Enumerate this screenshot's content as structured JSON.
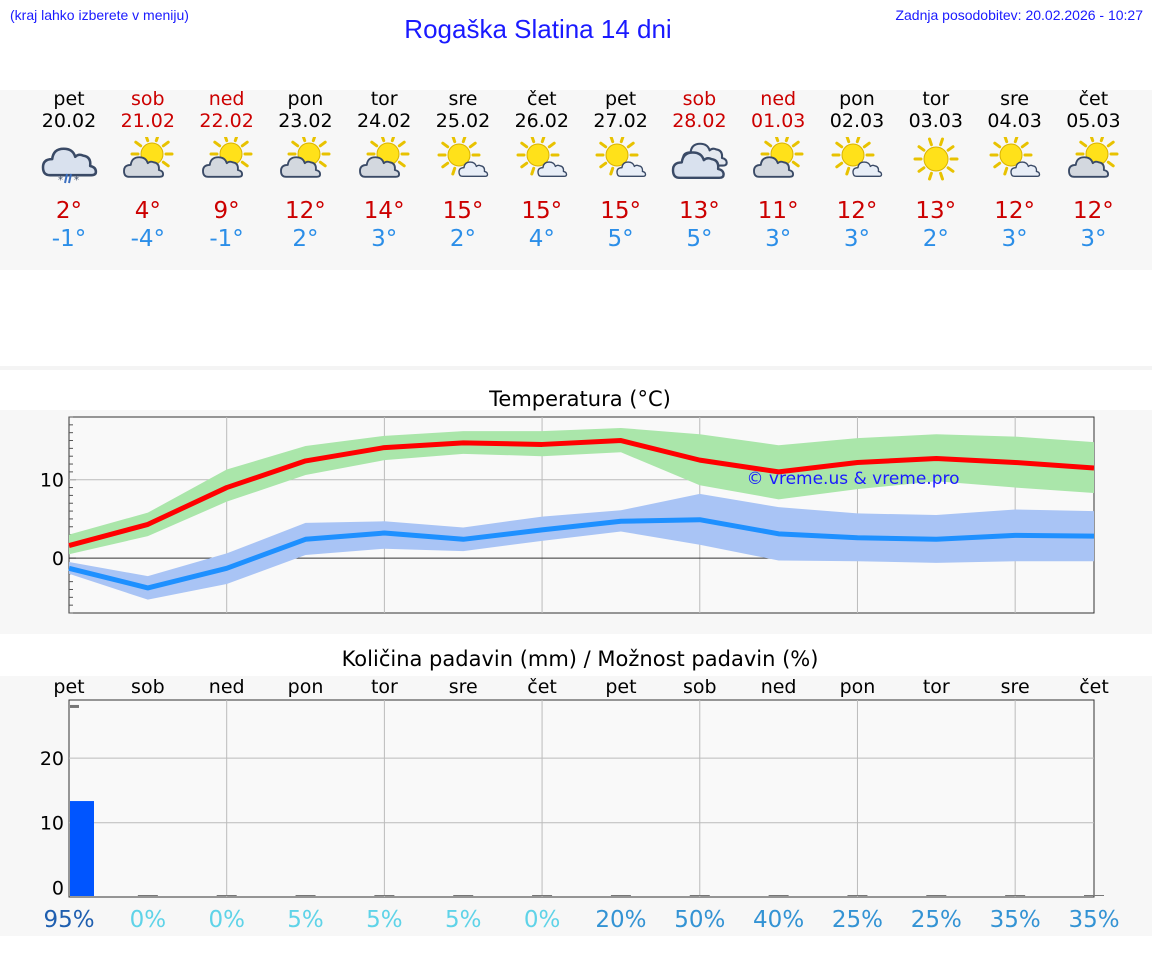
{
  "header": {
    "hint": "(kraj lahko izberete v meniju)",
    "title": "Rogaška Slatina 14 dni",
    "updated": "Zadnja posodobitev: 20.02.2026 - 10:27"
  },
  "days": [
    {
      "name": "pet",
      "date": "20.02",
      "weekend": false,
      "icon": "cloud-snow-rain-icon",
      "tmax": "2°",
      "tmin": "-1°"
    },
    {
      "name": "sob",
      "date": "21.02",
      "weekend": true,
      "icon": "sun-behind-cloud-icon",
      "tmax": "4°",
      "tmin": "-4°"
    },
    {
      "name": "ned",
      "date": "22.02",
      "weekend": true,
      "icon": "sun-behind-cloud-icon",
      "tmax": "9°",
      "tmin": "-1°"
    },
    {
      "name": "pon",
      "date": "23.02",
      "weekend": false,
      "icon": "sun-behind-cloud-icon",
      "tmax": "12°",
      "tmin": "2°"
    },
    {
      "name": "tor",
      "date": "24.02",
      "weekend": false,
      "icon": "sun-behind-cloud-icon",
      "tmax": "14°",
      "tmin": "3°"
    },
    {
      "name": "sre",
      "date": "25.02",
      "weekend": false,
      "icon": "sun-small-cloud-icon",
      "tmax": "15°",
      "tmin": "2°"
    },
    {
      "name": "čet",
      "date": "26.02",
      "weekend": false,
      "icon": "sun-small-cloud-icon",
      "tmax": "15°",
      "tmin": "4°"
    },
    {
      "name": "pet",
      "date": "27.02",
      "weekend": false,
      "icon": "sun-small-cloud-icon",
      "tmax": "15°",
      "tmin": "5°"
    },
    {
      "name": "sob",
      "date": "28.02",
      "weekend": true,
      "icon": "cloudy-icon",
      "tmax": "13°",
      "tmin": "5°"
    },
    {
      "name": "ned",
      "date": "01.03",
      "weekend": true,
      "icon": "sun-behind-cloud-icon",
      "tmax": "11°",
      "tmin": "3°"
    },
    {
      "name": "pon",
      "date": "02.03",
      "weekend": false,
      "icon": "sun-small-cloud-icon",
      "tmax": "12°",
      "tmin": "3°"
    },
    {
      "name": "tor",
      "date": "03.03",
      "weekend": false,
      "icon": "sun-icon",
      "tmax": "13°",
      "tmin": "2°"
    },
    {
      "name": "sre",
      "date": "04.03",
      "weekend": false,
      "icon": "sun-small-cloud-icon",
      "tmax": "12°",
      "tmin": "3°"
    },
    {
      "name": "čet",
      "date": "05.03",
      "weekend": false,
      "icon": "sun-behind-cloud-icon",
      "tmax": "12°",
      "tmin": "3°"
    }
  ],
  "colors": {
    "max_line": "#ff0000",
    "max_band": "#aae6aa",
    "min_line": "#1e90ff",
    "min_band": "#a9c4f5",
    "bar": "#0055ff",
    "grid": "#bbbbbb"
  },
  "chart_data": [
    {
      "type": "line",
      "title": "Temperatura (°C)",
      "watermark": "© vreme.us & vreme.pro",
      "x": [
        0,
        1,
        2,
        3,
        4,
        5,
        6,
        7,
        8,
        9,
        10,
        11,
        12,
        13
      ],
      "ylim": [
        -7,
        18
      ],
      "yticks": [
        0,
        10
      ],
      "series": [
        {
          "name": "max",
          "values": [
            1.6,
            4.3,
            9.0,
            12.4,
            14.1,
            14.7,
            14.5,
            15.0,
            12.5,
            11.0,
            12.2,
            12.7,
            12.2,
            11.5
          ],
          "band_low": [
            0.5,
            2.8,
            7.2,
            10.6,
            12.5,
            13.3,
            13.0,
            13.5,
            9.3,
            7.5,
            8.8,
            9.8,
            9.0,
            8.3
          ],
          "band_high": [
            3.0,
            5.8,
            11.3,
            14.3,
            15.6,
            16.2,
            16.2,
            16.6,
            15.8,
            14.4,
            15.3,
            15.8,
            15.5,
            14.8
          ]
        },
        {
          "name": "min",
          "values": [
            -1.3,
            -3.8,
            -1.3,
            2.4,
            3.2,
            2.4,
            3.6,
            4.7,
            4.9,
            3.1,
            2.6,
            2.4,
            2.9,
            2.8
          ],
          "band_low": [
            -2.0,
            -5.3,
            -3.3,
            0.4,
            1.2,
            0.9,
            2.2,
            3.4,
            1.7,
            -0.3,
            -0.4,
            -0.6,
            -0.4,
            -0.4
          ],
          "band_high": [
            -0.5,
            -2.3,
            0.6,
            4.5,
            4.7,
            3.9,
            5.3,
            6.1,
            8.2,
            6.5,
            5.7,
            5.5,
            6.2,
            6.0
          ]
        }
      ]
    },
    {
      "type": "bar",
      "title": "Količina padavin (mm) / Možnost padavin (%)",
      "categories": [
        "pet",
        "sob",
        "ned",
        "pon",
        "tor",
        "sre",
        "čet",
        "pet",
        "sob",
        "ned",
        "pon",
        "tor",
        "sre",
        "čet"
      ],
      "values": [
        13.2,
        0,
        0,
        0,
        0,
        0,
        0,
        0,
        0,
        0,
        0,
        0,
        0,
        0
      ],
      "ylim": [
        -1.5,
        29
      ],
      "yticks": [
        0,
        10,
        20
      ],
      "probability": [
        "95%",
        "0%",
        "0%",
        "5%",
        "5%",
        "5%",
        "0%",
        "20%",
        "50%",
        "40%",
        "25%",
        "25%",
        "35%",
        "35%"
      ],
      "probability_values": [
        95,
        0,
        0,
        5,
        5,
        5,
        0,
        20,
        50,
        40,
        25,
        25,
        35,
        35
      ]
    }
  ]
}
